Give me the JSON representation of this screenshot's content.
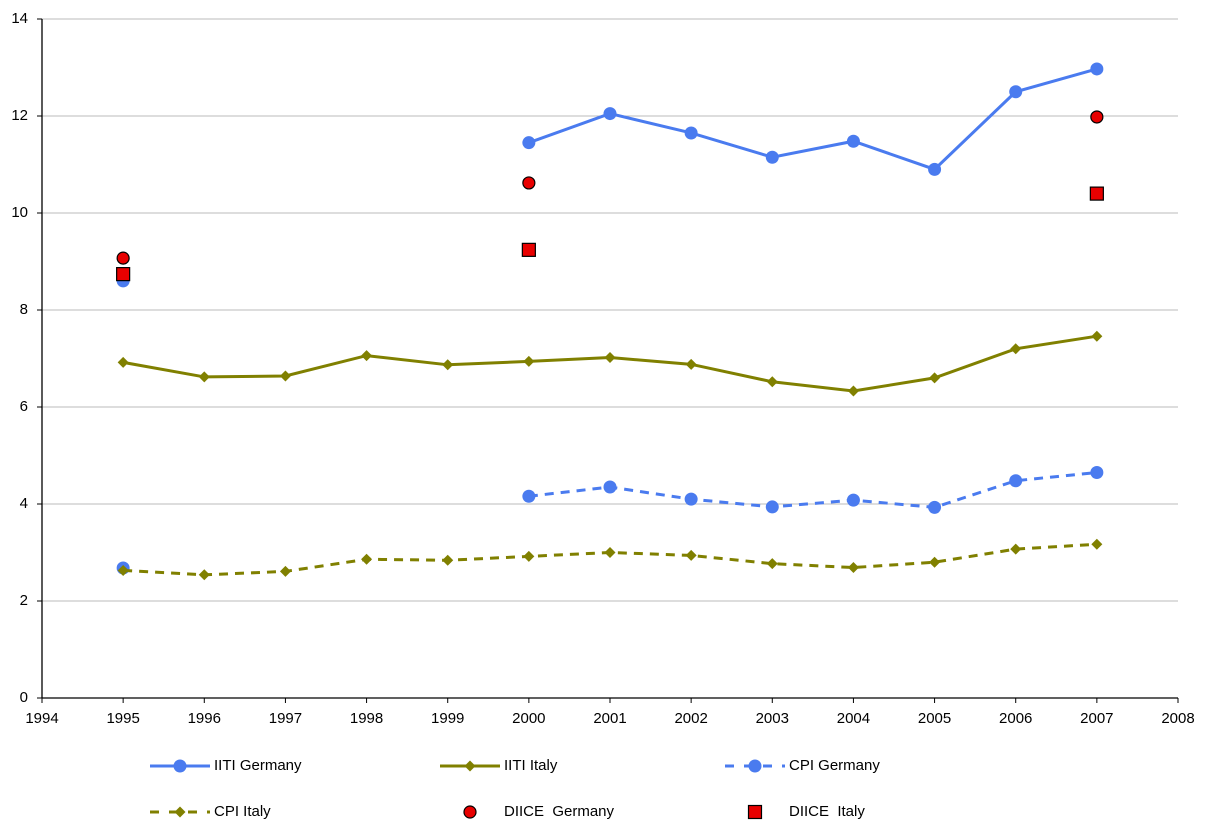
{
  "chart_data": {
    "type": "line",
    "x": [
      1995,
      1996,
      1997,
      1998,
      1999,
      2000,
      2001,
      2002,
      2003,
      2004,
      2005,
      2006,
      2007
    ],
    "xlim": [
      1994,
      2008
    ],
    "xticks": [
      1994,
      1995,
      1996,
      1997,
      1998,
      1999,
      2000,
      2001,
      2002,
      2003,
      2004,
      2005,
      2006,
      2007,
      2008
    ],
    "ylim": [
      0,
      14
    ],
    "yticks": [
      0,
      2,
      4,
      6,
      8,
      10,
      12,
      14
    ],
    "grid": true,
    "legend": "bottom",
    "series": [
      {
        "name": "IITI Germany",
        "color": "#4a7bef",
        "line": "solid",
        "marker": "circle",
        "values": [
          8.6,
          null,
          null,
          null,
          null,
          11.45,
          12.05,
          11.65,
          11.15,
          11.48,
          10.9,
          12.5,
          12.97
        ]
      },
      {
        "name": "IITI Italy",
        "color": "#808000",
        "line": "solid",
        "marker": "diamond",
        "values": [
          6.92,
          6.62,
          6.64,
          7.06,
          6.87,
          6.94,
          7.02,
          6.88,
          6.52,
          6.33,
          6.6,
          7.2,
          7.46
        ]
      },
      {
        "name": "CPI Germany",
        "color": "#4a7bef",
        "line": "dashed",
        "marker": "circle",
        "values": [
          2.68,
          null,
          null,
          null,
          null,
          4.16,
          4.35,
          4.1,
          3.94,
          4.08,
          3.93,
          4.48,
          4.65
        ]
      },
      {
        "name": "CPI Italy",
        "color": "#808000",
        "line": "dashed",
        "marker": "diamond",
        "values": [
          2.63,
          2.54,
          2.61,
          2.86,
          2.84,
          2.92,
          3.0,
          2.94,
          2.77,
          2.69,
          2.8,
          3.07,
          3.17
        ]
      },
      {
        "name": "DIICE  Germany",
        "color": "#e80000",
        "line": "none",
        "marker": "circle",
        "values": [
          9.07,
          null,
          null,
          null,
          null,
          10.62,
          null,
          null,
          null,
          null,
          null,
          null,
          11.98
        ]
      },
      {
        "name": "DIICE  Italy",
        "color": "#e80000",
        "line": "none",
        "marker": "square",
        "values": [
          8.74,
          null,
          null,
          null,
          null,
          9.24,
          null,
          null,
          null,
          null,
          null,
          null,
          10.4
        ]
      }
    ]
  }
}
